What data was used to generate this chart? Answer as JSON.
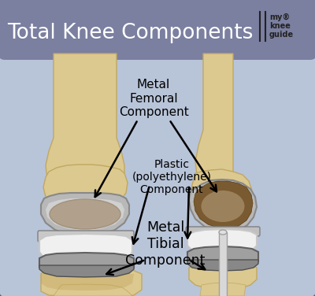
{
  "title": "Total Knee Components",
  "title_fontsize": 19,
  "title_color": "white",
  "title_bg_color": "#7b7fa0",
  "outer_bg_color": "#000000",
  "inner_bg_color": "#b8c4d8",
  "border_color": "#4a5070",
  "labels": {
    "femoral": "Metal\nFemoral\nComponent",
    "plastic": "Plastic\n(polyethylene)\nComponent",
    "tibial": "Metal\nTibial\nComponent"
  },
  "bone_color": "#dcc990",
  "bone_edge_color": "#c0a860",
  "bone_shadow": "#b89a50",
  "metal_color": "#b8b8b8",
  "metal_dark": "#888888",
  "metal_shine": "#e8e8e8",
  "metal_brown": "#7a5a30",
  "plastic_color": "#f0f0f0",
  "plastic_edge": "#c8c8c8",
  "figsize": [
    4.0,
    3.76
  ],
  "dpi": 100
}
